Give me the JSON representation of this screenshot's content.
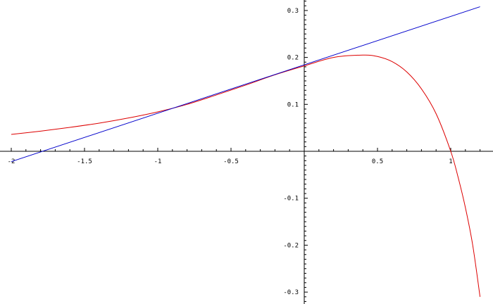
{
  "chart_data": {
    "type": "line",
    "title": "",
    "xlabel": "",
    "ylabel": "",
    "xlim": [
      -2.0,
      1.2
    ],
    "ylim": [
      -0.32,
      0.32
    ],
    "grid": false,
    "x_ticks": [
      {
        "value": -2,
        "label": "-2"
      },
      {
        "value": -1.5,
        "label": "-1.5"
      },
      {
        "value": -1,
        "label": "-1"
      },
      {
        "value": -0.5,
        "label": "-0.5"
      },
      {
        "value": 0.5,
        "label": "0.5"
      },
      {
        "value": 1,
        "label": "1"
      }
    ],
    "y_ticks": [
      {
        "value": 0.3,
        "label": "0.3"
      },
      {
        "value": 0.2,
        "label": "0.2"
      },
      {
        "value": 0.1,
        "label": "0.1"
      },
      {
        "value": -0.1,
        "label": "-0.1"
      },
      {
        "value": -0.2,
        "label": "-0.2"
      },
      {
        "value": -0.3,
        "label": "-0.3"
      }
    ],
    "series": [
      {
        "color": "#dd0000",
        "x": [
          -2.0,
          -1.8,
          -1.6,
          -1.4,
          -1.2,
          -1.0,
          -0.8,
          -0.6,
          -0.4,
          -0.2,
          0.0,
          0.2,
          0.4,
          0.5,
          0.6,
          0.7,
          0.8,
          0.9,
          1.0,
          1.05,
          1.1,
          1.15,
          1.2
        ],
        "y": [
          0.036,
          0.043,
          0.051,
          0.06,
          0.071,
          0.084,
          0.1,
          0.12,
          0.141,
          0.163,
          0.182,
          0.2,
          0.205,
          0.202,
          0.191,
          0.169,
          0.133,
          0.08,
          0.0,
          -0.055,
          -0.12,
          -0.2,
          -0.31
        ]
      },
      {
        "color": "#0000cc",
        "x": [
          -2.0,
          1.2
        ],
        "y": [
          -0.022,
          0.308
        ]
      }
    ]
  }
}
